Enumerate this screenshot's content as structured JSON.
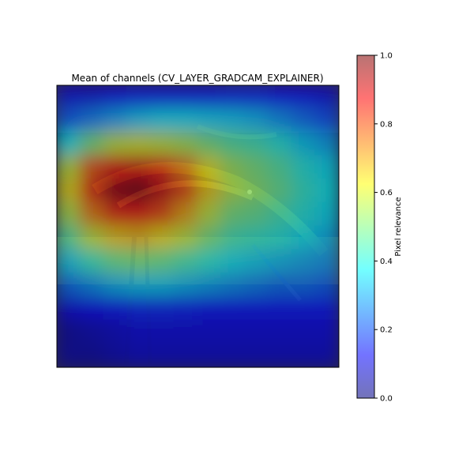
{
  "chart_data": {
    "type": "heatmap",
    "title": "Mean of channels (CV_LAYER_GRADCAM_EXPLAINER)",
    "colorbar": {
      "label": "Pixel relevance",
      "range": [
        0.0,
        1.0
      ],
      "ticks": [
        {
          "value": 0.0,
          "label": "0.0"
        },
        {
          "value": 0.2,
          "label": "0.2"
        },
        {
          "value": 0.4,
          "label": "0.4"
        },
        {
          "value": 0.6,
          "label": "0.6"
        },
        {
          "value": 0.8,
          "label": "0.8"
        },
        {
          "value": 1.0,
          "label": "1.0"
        }
      ],
      "colormap": "jet",
      "alpha": 0.5
    },
    "heatmap": {
      "rows": [
        [
          0.1,
          0.1,
          0.12,
          0.14,
          0.14,
          0.14,
          0.14,
          0.15,
          0.15,
          0.13,
          0.12,
          0.1
        ],
        [
          0.22,
          0.26,
          0.3,
          0.34,
          0.36,
          0.36,
          0.35,
          0.34,
          0.32,
          0.28,
          0.24,
          0.2
        ],
        [
          0.38,
          0.5,
          0.58,
          0.6,
          0.58,
          0.55,
          0.5,
          0.46,
          0.44,
          0.4,
          0.34,
          0.3
        ],
        [
          0.58,
          0.78,
          0.88,
          0.9,
          0.84,
          0.74,
          0.62,
          0.54,
          0.5,
          0.46,
          0.4,
          0.36
        ],
        [
          0.64,
          0.84,
          0.97,
          1.0,
          0.92,
          0.8,
          0.66,
          0.56,
          0.52,
          0.48,
          0.42,
          0.38
        ],
        [
          0.56,
          0.74,
          0.84,
          0.86,
          0.8,
          0.7,
          0.58,
          0.5,
          0.48,
          0.44,
          0.4,
          0.36
        ],
        [
          0.46,
          0.58,
          0.66,
          0.68,
          0.64,
          0.58,
          0.5,
          0.44,
          0.42,
          0.4,
          0.36,
          0.32
        ],
        [
          0.34,
          0.42,
          0.48,
          0.5,
          0.48,
          0.44,
          0.4,
          0.36,
          0.34,
          0.32,
          0.3,
          0.28
        ],
        [
          0.24,
          0.28,
          0.32,
          0.34,
          0.34,
          0.32,
          0.3,
          0.28,
          0.26,
          0.24,
          0.24,
          0.22
        ],
        [
          0.1,
          0.12,
          0.14,
          0.16,
          0.16,
          0.15,
          0.14,
          0.14,
          0.14,
          0.14,
          0.14,
          0.14
        ],
        [
          0.04,
          0.06,
          0.08,
          0.1,
          0.1,
          0.1,
          0.1,
          0.1,
          0.1,
          0.1,
          0.1,
          0.1
        ],
        [
          0.04,
          0.04,
          0.06,
          0.08,
          0.08,
          0.08,
          0.08,
          0.08,
          0.08,
          0.08,
          0.08,
          0.08
        ]
      ]
    },
    "axes": {
      "visible_ticks": false
    }
  }
}
